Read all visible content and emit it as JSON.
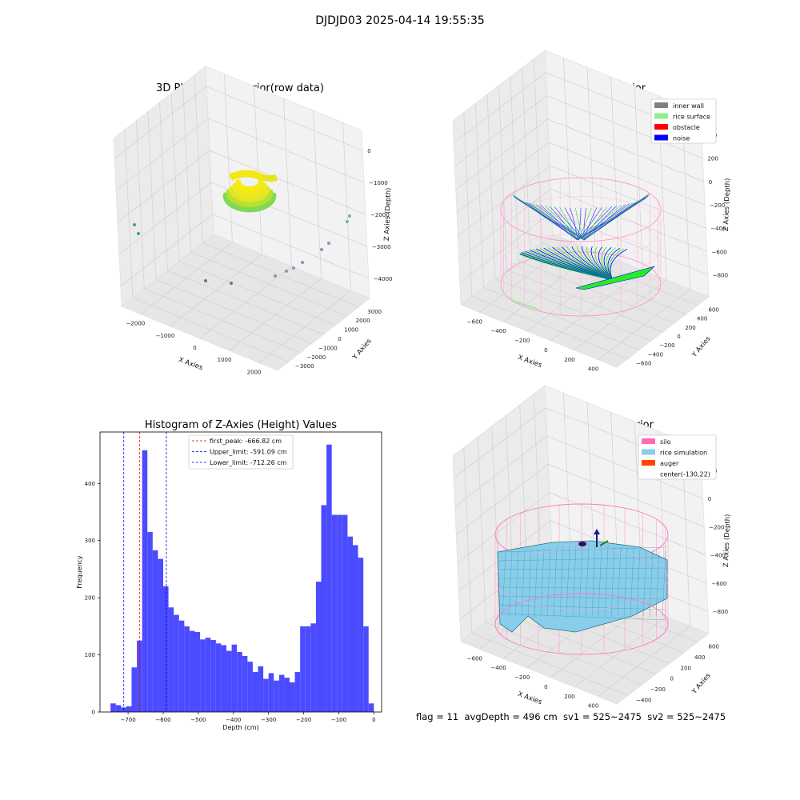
{
  "figure_title": "DJDJD03 2025-04-14 19:55:35",
  "footer": {
    "text": "flag = 11  avgDepth = 496 cm  sv1 = 525~2475  sv2 = 525~2475"
  },
  "colors": {
    "inner_wall": "#808080",
    "rice_surface": "#90ee90",
    "obstacle": "#ff0000",
    "noise": "#0000ff",
    "silo": "#ff69b4",
    "rice_simulation": "#87ceeb",
    "auger": "#ff4500",
    "hist_bar": "#4b4bff"
  },
  "chart_data": [
    {
      "type": "scatter",
      "title": "3D Plot of Silo Interior(row data)",
      "xlabel": "X Axies",
      "ylabel": "Y Axies",
      "zlabel": "Z Axies (Depth)",
      "x_ticks": [
        "−2000",
        "−1000",
        "0",
        "1000",
        "2000"
      ],
      "y_ticks": [
        "−3000",
        "−2000",
        "−1000",
        "0",
        "1000",
        "2000",
        "3000"
      ],
      "z_ticks": [
        "0",
        "−1000",
        "−2000",
        "−3000",
        "−4000"
      ]
    },
    {
      "type": "scatter",
      "title": "3D classify of Silo Interior",
      "xlabel": "X Axies",
      "ylabel": "Y Axies",
      "zlabel": "Z Axies (Depth)",
      "x_ticks": [
        "−600",
        "−400",
        "−200",
        "0",
        "200",
        "400"
      ],
      "y_ticks": [
        "−600",
        "−400",
        "−200",
        "0",
        "200",
        "400",
        "600"
      ],
      "z_ticks": [
        "400",
        "200",
        "0",
        "−200",
        "−400",
        "−600",
        "−800"
      ],
      "legend": [
        "inner wall",
        "rice surface",
        "obstacle",
        "noise"
      ],
      "legend_position": "upper-right"
    },
    {
      "type": "bar",
      "title": "Histogram of Z-Axies (Height) Values",
      "xlabel": "Depth (cm)",
      "ylabel": "Frequency",
      "xlim": [
        -780,
        22
      ],
      "ylim": [
        0,
        490
      ],
      "x_ticks": [
        "−700",
        "−600",
        "−500",
        "−400",
        "−300",
        "−200",
        "−100",
        "0"
      ],
      "y_ticks": [
        "0",
        "100",
        "200",
        "300",
        "400"
      ],
      "bin_width": 15,
      "bin_start": -750,
      "values": [
        15,
        12,
        8,
        10,
        78,
        125,
        458,
        315,
        283,
        268,
        220,
        183,
        170,
        160,
        150,
        142,
        140,
        127,
        130,
        126,
        120,
        117,
        107,
        118,
        105,
        98,
        88,
        70,
        80,
        58,
        68,
        55,
        65,
        60,
        52,
        70,
        150,
        150,
        155,
        228,
        362,
        468,
        345,
        345,
        345,
        307,
        292,
        270,
        150,
        15
      ],
      "vlines": [
        {
          "x": -666.82,
          "label": "first_peak: -666.82 cm",
          "color": "#ff0000"
        },
        {
          "x": -591.09,
          "label": "Upper_limit: -591.09 cm",
          "color": "#0000ff"
        },
        {
          "x": -712.26,
          "label": "Lower_limit: -712.26 cm",
          "color": "#0000ff"
        }
      ],
      "legend_position": "upper-center"
    },
    {
      "type": "area",
      "title": "3D simulation of Silo Interior",
      "xlabel": "X Axies",
      "ylabel": "Y Axies",
      "zlabel": "Z Axies (Depth)",
      "x_ticks": [
        "−600",
        "−400",
        "−200",
        "0",
        "200",
        "400"
      ],
      "y_ticks": [
        "−400",
        "−200",
        "0",
        "200",
        "400",
        "600"
      ],
      "z_ticks": [
        "200",
        "0",
        "−200",
        "−400",
        "−600",
        "−800"
      ],
      "legend": [
        "silo",
        "rice simulation",
        "auger",
        "center(-130,22)"
      ],
      "legend_position": "upper-right"
    }
  ]
}
